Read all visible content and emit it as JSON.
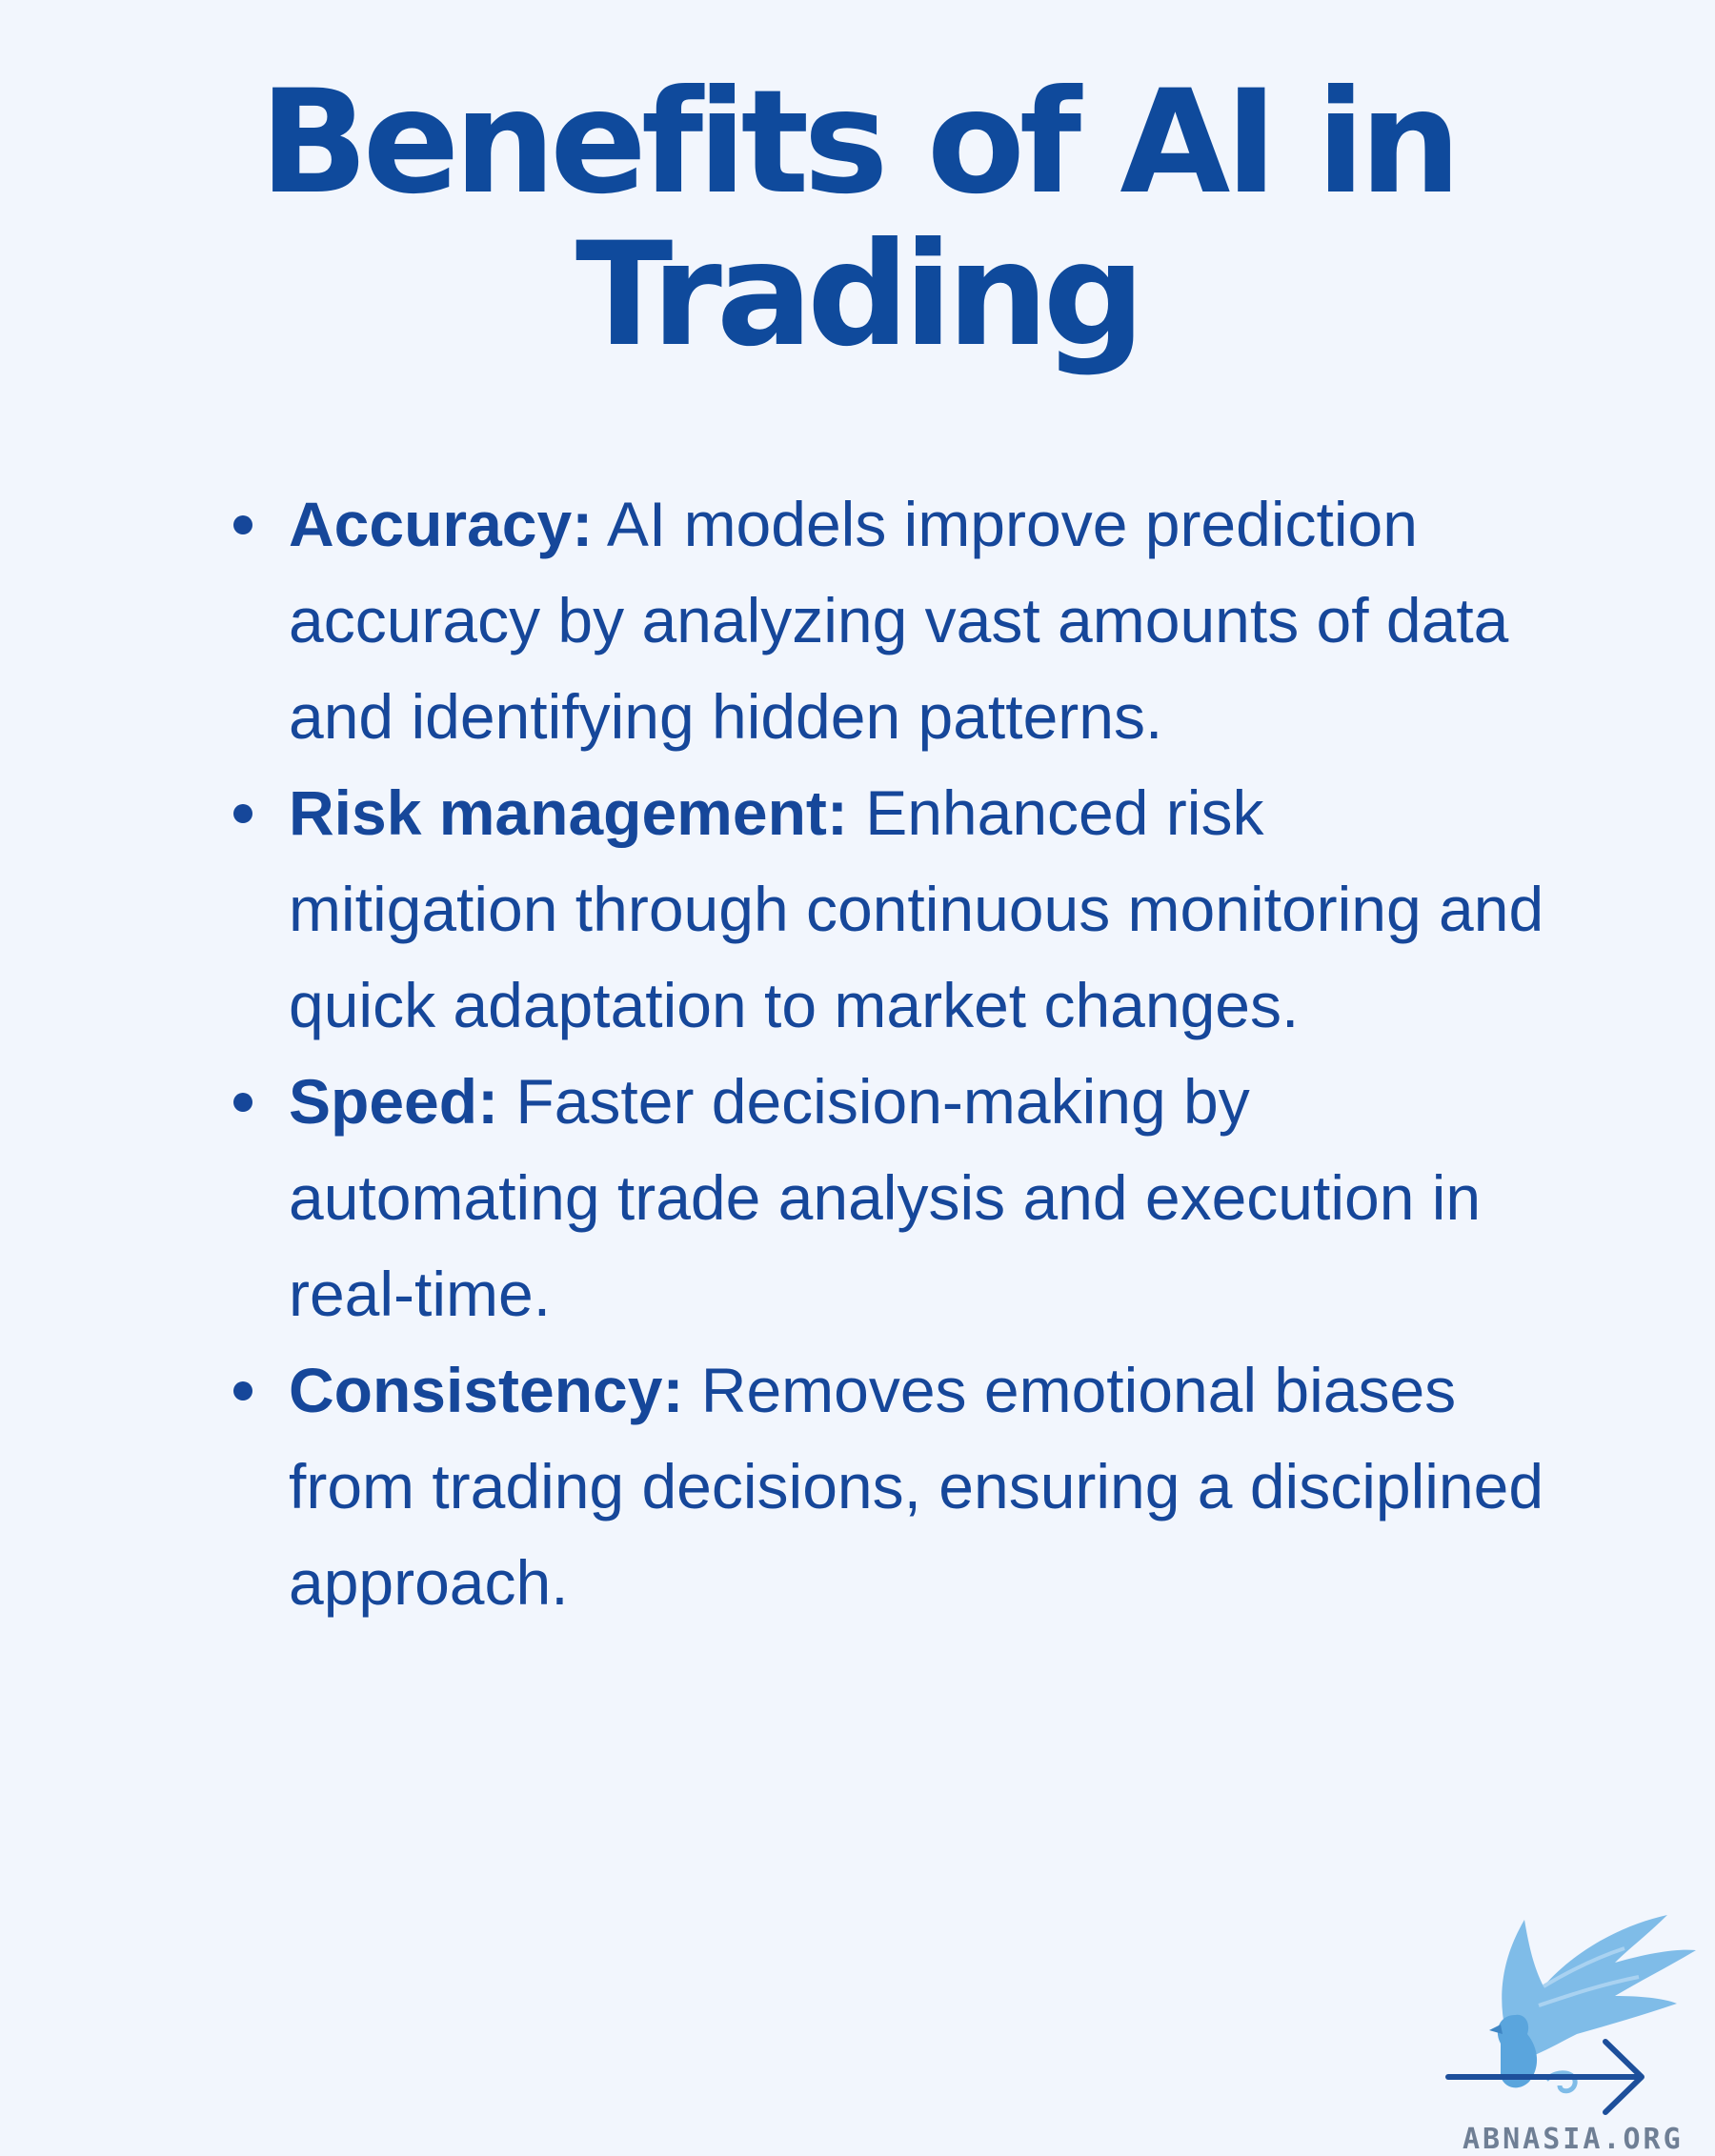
{
  "title": {
    "line1": "Benefits of AI in",
    "line2": "Trading"
  },
  "benefits": [
    {
      "term": "Accuracy:",
      "description": "AI models improve prediction accuracy by analyzing vast amounts of data and identifying hidden patterns."
    },
    {
      "term": "Risk management:",
      "description": "Enhanced risk mitigation through continuous monitoring and quick adaptation to market changes."
    },
    {
      "term": "Speed:",
      "description": "Faster decision-making by automating trade analysis and execution in real-time."
    },
    {
      "term": "Consistency:",
      "description": "Removes emotional biases from trading decisions, ensuring a disciplined approach."
    }
  ],
  "logo": {
    "text": "ABNASIA.ORG",
    "icon": "griffin-logo-icon",
    "arrow_icon": "arrow-right-icon",
    "colors": {
      "wing": "#7fbce8",
      "arrow": "#1d4f9b"
    }
  },
  "colors": {
    "background": "#f2f6fd",
    "title": "#0f4a9c",
    "text": "#16479a"
  }
}
